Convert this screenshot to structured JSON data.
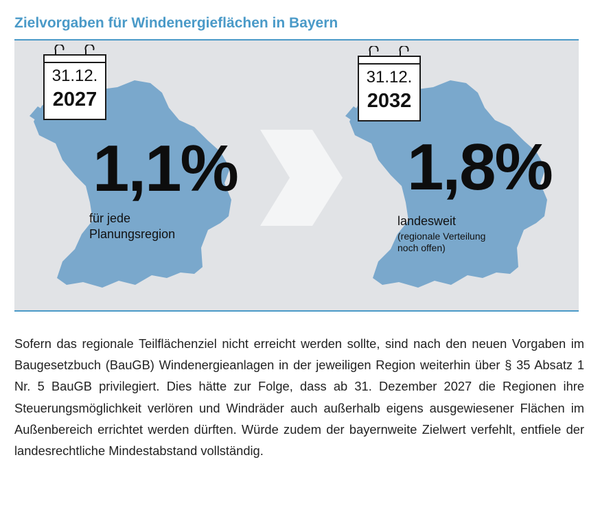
{
  "title": "Zielvorgaben für Windenergieflächen in Bayern",
  "colors": {
    "accent": "#4a9ac8",
    "map_fill": "#7aa8cc",
    "panel_background": "#e1e3e6",
    "chevron": "#f4f5f6"
  },
  "icons": [
    "calendar-icon",
    "bavaria-map-icon",
    "double-chevron-right-icon"
  ],
  "targets": [
    {
      "date": "31.12.",
      "year": "2027",
      "value": "1,1%",
      "caption_line1": "für jede",
      "caption_line2": "Planungsregion"
    },
    {
      "date": "31.12.",
      "year": "2032",
      "value": "1,8%",
      "caption_line1": "landesweit",
      "note_line1": "(regionale Verteilung",
      "note_line2": "noch offen)"
    }
  ],
  "body_text": "Sofern das regionale Teilflächenziel nicht erreicht werden sollte, sind nach den neuen Vorgaben im Baugesetzbuch (BauGB) Windenergieanlagen in der jeweiligen Region weiterhin über § 35 Absatz 1 Nr. 5 BauGB privilegiert. Dies hätte zur Folge, dass ab 31. Dezember 2027 die Regionen ihre Steuerungsmöglichkeit verlören und Windräder auch außerhalb eigens ausgewiesener Flächen im Außenbereich errichtet werden dürften. Würde zudem der bayernweite Zielwert verfehlt, entfiele der landesrechtliche Mindestabstand vollständig."
}
